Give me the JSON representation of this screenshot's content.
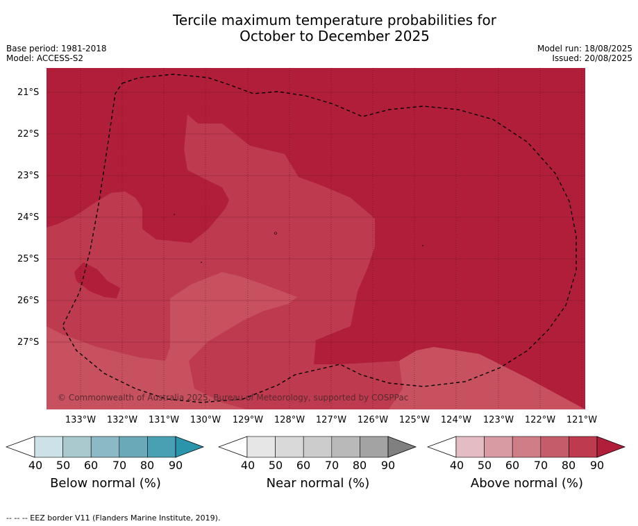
{
  "header": {
    "title_line1": "Tercile maximum temperature probabilities for",
    "title_line2": "October to December 2025",
    "base_period": "Base period: 1981-2018",
    "model": "Model: ACCESS-S2",
    "model_run": "Model run: 18/08/2025",
    "issued": "Issued: 20/08/2025"
  },
  "map": {
    "lat_labels": [
      "21°S",
      "22°S",
      "23°S",
      "24°S",
      "25°S",
      "26°S",
      "27°S"
    ],
    "lon_labels": [
      "133°W",
      "132°W",
      "131°W",
      "130°W",
      "129°W",
      "128°W",
      "127°W",
      "126°W",
      "125°W",
      "124°W",
      "123°W",
      "122°W",
      "121°W"
    ],
    "watermark": "© Commonwealth of Australia 2025, Bureau of Meteorology, supported by COSPPac",
    "colors": {
      "above_90": "#b01e3a",
      "above_80": "#bd3a4f",
      "above_70": "#c7515f"
    }
  },
  "legends": [
    {
      "title": "Below normal (%)",
      "ticks": [
        "40",
        "50",
        "60",
        "70",
        "80",
        "90"
      ],
      "colors": [
        "#ffffff",
        "#cde2e8",
        "#aac9cf",
        "#8bbac6",
        "#6aaab8",
        "#48a0b2",
        "#2a95ab"
      ]
    },
    {
      "title": "Near normal (%)",
      "ticks": [
        "40",
        "50",
        "60",
        "70",
        "80",
        "90"
      ],
      "colors": [
        "#ffffff",
        "#e6e6e6",
        "#d9d9d9",
        "#cccccc",
        "#b9b9b9",
        "#a3a3a3",
        "#808080"
      ]
    },
    {
      "title": "Above normal (%)",
      "ticks": [
        "40",
        "50",
        "60",
        "70",
        "80",
        "90"
      ],
      "colors": [
        "#ffffff",
        "#e4bcc3",
        "#d89ba4",
        "#cf7d86",
        "#c55c69",
        "#bd3a4f",
        "#b01e3a"
      ]
    }
  ],
  "footnote": "-- -- -- EEZ border V11 (Flanders Marine Institute, 2019)."
}
